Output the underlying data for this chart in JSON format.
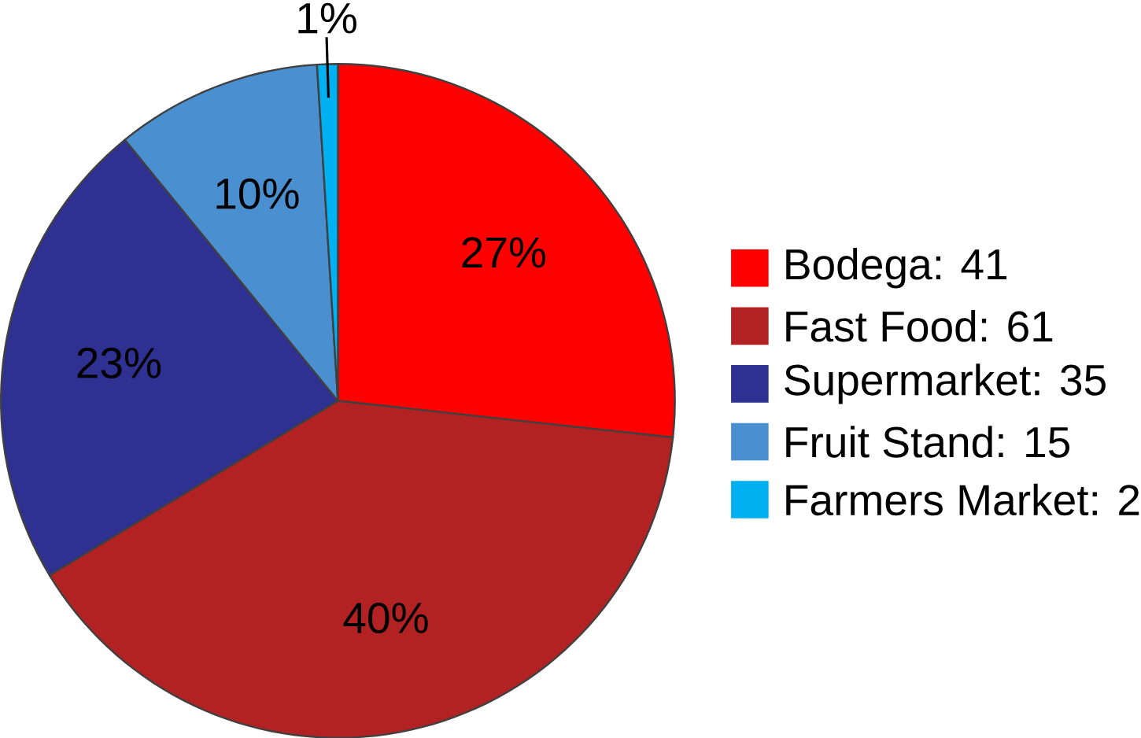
{
  "chart_data": {
    "type": "pie",
    "categories": [
      "Bodega: 41",
      "Fast Food: 61",
      "Supermarket: 35",
      "Fruit Stand: 15",
      "Farmers Market: 2"
    ],
    "values": [
      27,
      40,
      23,
      10,
      1
    ],
    "colors": [
      "#ff0000",
      "#b22222",
      "#2e3192",
      "#4a8fd0",
      "#00b0f0"
    ],
    "value_labels": [
      "27%",
      "40%",
      "23%",
      "10%",
      "1%"
    ],
    "legend": "right"
  }
}
